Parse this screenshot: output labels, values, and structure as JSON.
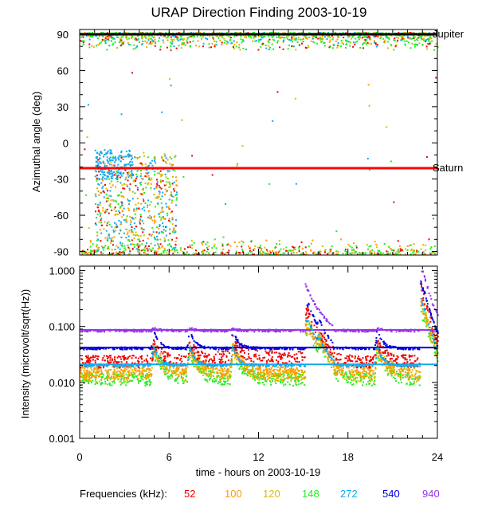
{
  "title": "URAP Direction Finding  2003-10-19",
  "chart_data": [
    {
      "type": "scatter",
      "ylabel": "Azimuthal angle (deg)",
      "xlim": [
        0,
        24
      ],
      "ylim": [
        -93,
        94
      ],
      "yticks": [
        90,
        60,
        30,
        0,
        -30,
        -60,
        -90
      ],
      "ytick_labels": [
        "90",
        "60",
        "30",
        "0",
        "-30",
        "-60",
        "-90"
      ],
      "annotations": [
        {
          "text": "Jupiter",
          "y": 90
        },
        {
          "text": "Saturn",
          "y": -21
        }
      ],
      "reference_lines": [
        {
          "name": "Jupiter",
          "y": 90,
          "color": "#000000"
        },
        {
          "name": "Saturn",
          "y": -21,
          "color": "#ff0000"
        }
      ]
    },
    {
      "type": "scatter",
      "ylabel": "Intensity (microvolt/sqrt(Hz))",
      "yscale": "log",
      "xlim": [
        0,
        24
      ],
      "ylim": [
        0.001,
        1.2
      ],
      "yticks": [
        1.0,
        0.1,
        0.01,
        0.001
      ],
      "ytick_labels": [
        "1.000",
        "0.100",
        "0.010",
        "0.001"
      ],
      "xlabel": "time - hours on 2003-10-19",
      "xticks": [
        0,
        6,
        12,
        18,
        24
      ],
      "xtick_labels": [
        "0",
        "6",
        "12",
        "18",
        "24"
      ],
      "baselines": [
        {
          "freq": "940",
          "y": 0.087
        },
        {
          "freq": "540",
          "y": 0.042
        },
        {
          "freq": "272",
          "y": 0.021
        }
      ],
      "bursts_hours": [
        4.9,
        7.3,
        10.2,
        15.3,
        16.0,
        19.9,
        23.1
      ]
    }
  ],
  "legend": {
    "label": "Frequencies (kHz):",
    "items": [
      {
        "text": "52",
        "color": "#ee0000"
      },
      {
        "text": "100",
        "color": "#ff9900"
      },
      {
        "text": "120",
        "color": "#ddbb00"
      },
      {
        "text": "148",
        "color": "#22ee22"
      },
      {
        "text": "272",
        "color": "#11aaee"
      },
      {
        "text": "540",
        "color": "#0000dd"
      },
      {
        "text": "940",
        "color": "#9933ee"
      }
    ]
  }
}
